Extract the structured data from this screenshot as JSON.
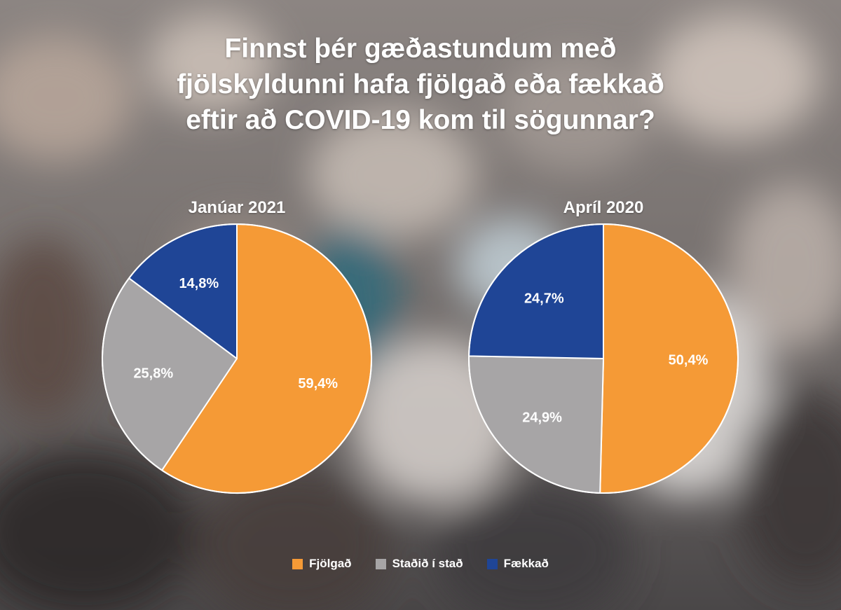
{
  "title_lines": [
    "Finnst þér gæðastundum með",
    "fjölskyldunni hafa fjölgað eða fækkað",
    "eftir að COVID-19 kom til sögunnar?"
  ],
  "colors": {
    "Fjölgað": "#f59a36",
    "Staðið í stað": "#a7a5a6",
    "Fækkað": "#1f4596"
  },
  "legend": [
    {
      "label": "Fjölgað",
      "color": "#f59a36"
    },
    {
      "label": "Staðið í stað",
      "color": "#a7a5a6"
    },
    {
      "label": "Fækkað",
      "color": "#1f4596"
    }
  ],
  "chart_data": [
    {
      "type": "pie",
      "title": "Janúar 2021",
      "slices": [
        {
          "label": "Fjölgað",
          "value": 59.4,
          "display": "59,4%"
        },
        {
          "label": "Staðið í stað",
          "value": 25.8,
          "display": "25,8%"
        },
        {
          "label": "Fækkað",
          "value": 14.8,
          "display": "14,8%"
        }
      ]
    },
    {
      "type": "pie",
      "title": "Apríl 2020",
      "slices": [
        {
          "label": "Fjölgað",
          "value": 50.4,
          "display": "50,4%"
        },
        {
          "label": "Staðið í stað",
          "value": 24.9,
          "display": "24,9%"
        },
        {
          "label": "Fækkað",
          "value": 24.7,
          "display": "24,7%"
        }
      ]
    }
  ]
}
